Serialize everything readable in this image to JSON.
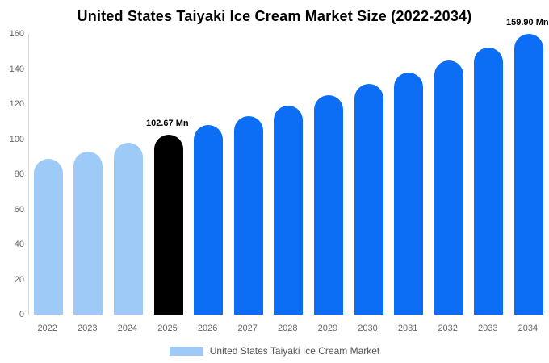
{
  "title": "United States Taiyaki Ice Cream Market Size (2022-2034)",
  "legend": {
    "label": "United States Taiyaki Ice Cream Market",
    "swatch_color": "#9ECAF7"
  },
  "axis": {
    "y_ticks": [
      "0",
      "20",
      "40",
      "60",
      "80",
      "100",
      "120",
      "140",
      "160"
    ]
  },
  "chart_data": {
    "type": "bar",
    "title": "United States Taiyaki Ice Cream Market Size (2022-2034)",
    "xlabel": "",
    "ylabel": "",
    "unit": "Mn",
    "ylim": [
      0,
      160
    ],
    "ytick_step": 20,
    "grid": false,
    "legend_position": "bottom",
    "categories": [
      "2022",
      "2023",
      "2024",
      "2025",
      "2026",
      "2027",
      "2028",
      "2029",
      "2030",
      "2031",
      "2032",
      "2033",
      "2034"
    ],
    "values": [
      88.56,
      93.03,
      97.72,
      102.67,
      107.85,
      113.3,
      119.02,
      125.03,
      131.35,
      138.0,
      144.96,
      152.28,
      159.9
    ],
    "labeled_values": {
      "2025": 102.67,
      "2034": 159.9
    },
    "colors": {
      "historical": "#9ECAF7",
      "highlight": "#000000",
      "forecast": "#0B6EF5"
    },
    "color_roles": [
      "historical",
      "historical",
      "historical",
      "highlight",
      "forecast",
      "forecast",
      "forecast",
      "forecast",
      "forecast",
      "forecast",
      "forecast",
      "forecast",
      "forecast"
    ],
    "annotations": [
      {
        "category": "2025",
        "text": "102.67 Mn"
      },
      {
        "category": "2034",
        "text": "159.90 Mn"
      }
    ]
  }
}
